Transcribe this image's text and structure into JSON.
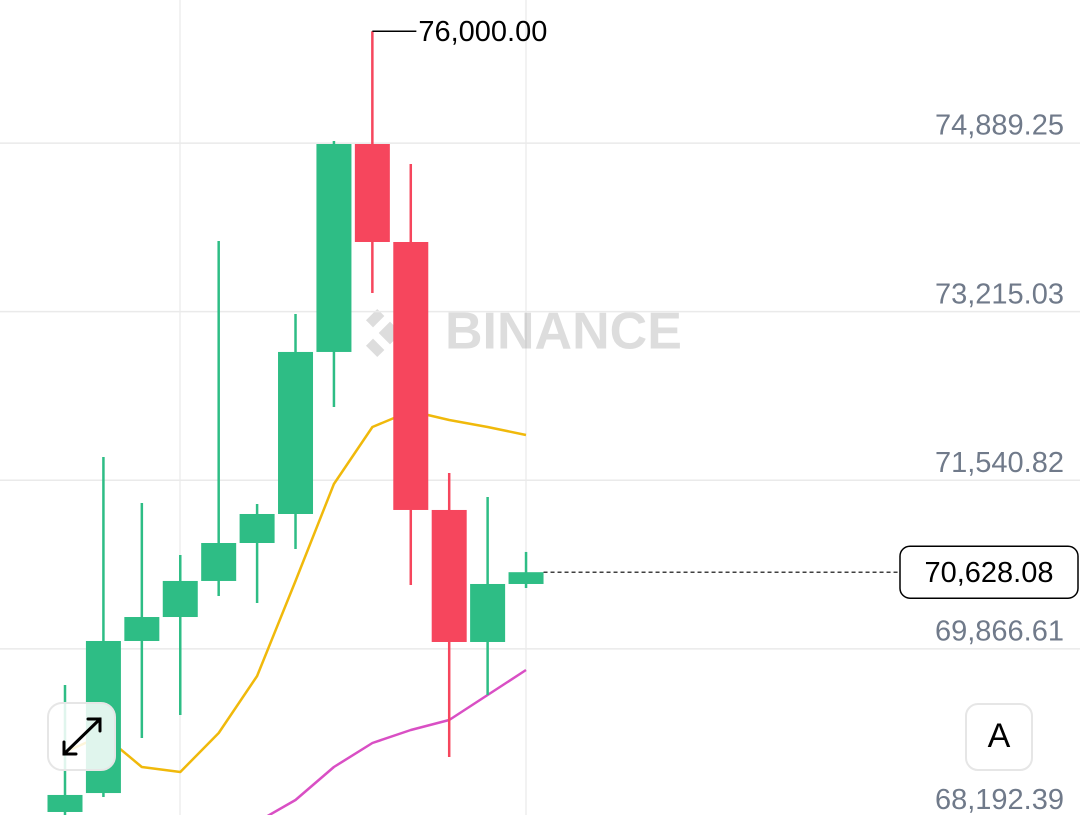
{
  "chart_data": {
    "type": "candlestick",
    "watermark": "BINANCE",
    "categories": [
      null,
      null,
      null,
      null,
      null,
      null,
      null,
      null,
      null,
      null,
      null,
      null,
      null
    ],
    "open": [
      68247,
      68435,
      69945,
      70183,
      70541,
      70918,
      71206,
      72815,
      74880,
      73907,
      71246,
      69935,
      70511
    ],
    "high": [
      69508,
      71772,
      71315,
      70799,
      73917,
      71305,
      73192,
      74910,
      76000,
      74681,
      71613,
      71375,
      70829
    ],
    "low": [
      68217,
      68396,
      68982,
      69210,
      70392,
      70322,
      70858,
      72268,
      73400,
      70501,
      68793,
      69409,
      70471
    ],
    "close": [
      68416,
      69945,
      70183,
      70541,
      70918,
      71206,
      72815,
      74880,
      73907,
      71246,
      69935,
      70511,
      70628.08
    ],
    "up_color": "#2ebd85",
    "down_color": "#f6465d",
    "series": [
      {
        "color": "#f0b90b",
        "values": [
          68843,
          69011,
          68694,
          68644,
          69031,
          69597,
          70541,
          71504,
          72070,
          72229,
          72139,
          72070,
          71990
        ]
      },
      {
        "color": "#d94fc4",
        "values": [
          null,
          null,
          null,
          null,
          null,
          68147,
          68366,
          68694,
          68932,
          69061,
          69160,
          69409,
          69657
        ]
      }
    ],
    "ylim": [
      68217,
      76310
    ],
    "yticks": [
      {
        "value": 68192.39,
        "label": "68,192.39"
      },
      {
        "value": 69866.61,
        "label": "69,866.61"
      },
      {
        "value": 71540.82,
        "label": "71,540.82"
      },
      {
        "value": 73215.03,
        "label": "73,215.03"
      },
      {
        "value": 74889.25,
        "label": "74,889.25"
      }
    ],
    "grid": true,
    "high_marker": {
      "value": 76000,
      "label": "76,000.00"
    },
    "last_price": {
      "value": 70628.08,
      "label": "70,628.08"
    },
    "scale_button": "A"
  }
}
